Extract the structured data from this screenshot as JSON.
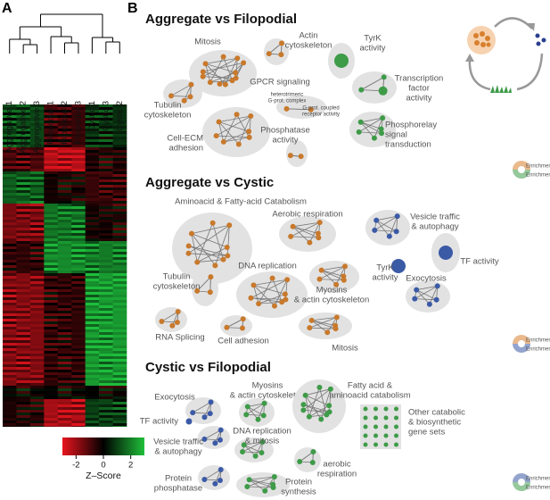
{
  "panel_a": {
    "label": "A",
    "samples": [
      "Aggregative 1",
      "Aggregative 2",
      "Aggregative 3",
      "Filopodial 1",
      "Filopodial 2",
      "Filopodial 3",
      "Cystic 1",
      "Cystic 3",
      "Cystic 2"
    ],
    "colorbar": {
      "title": "Z–Score",
      "range": [
        -3,
        3
      ],
      "ticks": [
        -2,
        0,
        2
      ]
    }
  },
  "panel_b": {
    "label": "B",
    "sections": [
      {
        "title": "Aggregate vs Filopodial",
        "legend": [
          "Enrichment aggregate",
          "Enrichment filopodial"
        ],
        "clusters": [
          {
            "label": [
              "Mitosis"
            ]
          },
          {
            "label": [
              "Actin",
              "cytoskeleton"
            ]
          },
          {
            "label": [
              "TyrK",
              "activity"
            ]
          },
          {
            "label": [
              "Transcription",
              "factor",
              "activity"
            ]
          },
          {
            "label": [
              "Tubulin",
              "cytoskeleton"
            ]
          },
          {
            "label": [
              "GPCR signaling"
            ],
            "sublabels": [
              [
                "heterotrimeric",
                "G-prot. complex"
              ],
              [
                "G-prot. coupled",
                "receptor activity"
              ]
            ]
          },
          {
            "label": [
              "Cell-ECM",
              "adhesion"
            ]
          },
          {
            "label": [
              "Phosphatase",
              "activity"
            ]
          },
          {
            "label": [
              "Phosphorelay",
              "signal",
              "transduction"
            ]
          }
        ]
      },
      {
        "title": "Aggregate vs Cystic",
        "legend": [
          "Enrichment aggregate",
          "Enrichment cystic"
        ],
        "clusters": [
          {
            "label": [
              "Aminoacid & Fatty-acid Catabolism"
            ]
          },
          {
            "label": [
              "Aerobic respiration"
            ]
          },
          {
            "label": [
              "Vesicle traffic",
              "& autophagy"
            ]
          },
          {
            "label": [
              "TF activity"
            ]
          },
          {
            "label": [
              "TyrK",
              "activity"
            ]
          },
          {
            "label": [
              "Tubulin",
              "cytoskeleton"
            ]
          },
          {
            "label": [
              "DNA replication"
            ]
          },
          {
            "label": [
              "Myosins",
              "& actin cytoskeleton"
            ]
          },
          {
            "label": [
              "Exocytosis"
            ]
          },
          {
            "label": [
              "RNA Splicing"
            ]
          },
          {
            "label": [
              "Cell adhesion"
            ]
          },
          {
            "label": [
              "Mitosis"
            ]
          }
        ]
      },
      {
        "title": "Cystic vs Filopodial",
        "legend": [
          "Enrichment cystic",
          "Enrichment filopodial"
        ],
        "clusters": [
          {
            "label": [
              "Exocytosis"
            ]
          },
          {
            "label": [
              "Myosins",
              "& actin cytoskeleton"
            ]
          },
          {
            "label": [
              "Fatty acid &",
              "aminoacid catabolism"
            ]
          },
          {
            "label": [
              "TF activity"
            ]
          },
          {
            "label": [
              "Other catabolic",
              "& biosynthetic",
              "gene sets"
            ]
          },
          {
            "label": [
              "Vesicle traffic",
              "& autophagy"
            ]
          },
          {
            "label": [
              "DNA replication",
              "& mitosis"
            ]
          },
          {
            "label": [
              "aerobic",
              "respiration"
            ]
          },
          {
            "label": [
              "Protein",
              "phosphatase"
            ]
          },
          {
            "label": [
              "Protein",
              "synthesis"
            ]
          }
        ]
      }
    ]
  }
}
